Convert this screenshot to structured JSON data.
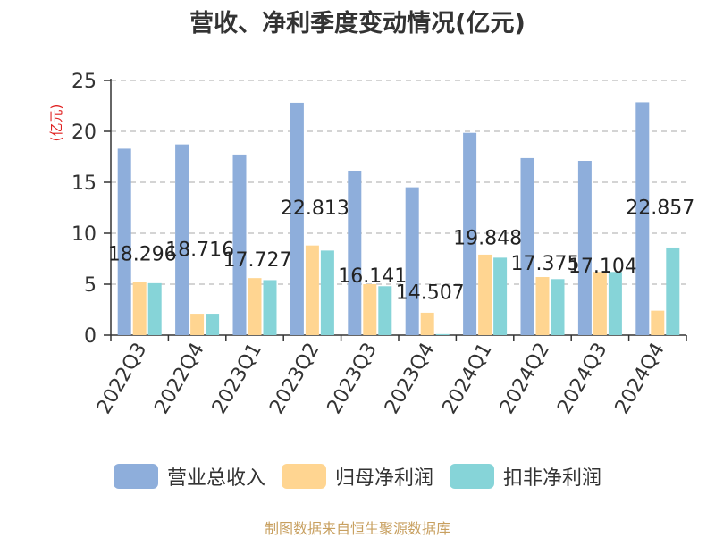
{
  "chart_data": {
    "type": "bar",
    "title": "营收、净利季度变动情况(亿元)",
    "ylabel": "(亿元)",
    "xlabel": "",
    "ylim": [
      0,
      25
    ],
    "yticks": [
      0,
      5,
      10,
      15,
      20,
      25
    ],
    "grid": true,
    "legend_position": "bottom",
    "categories": [
      "2022Q3",
      "2022Q4",
      "2023Q1",
      "2023Q2",
      "2023Q3",
      "2023Q4",
      "2024Q1",
      "2024Q2",
      "2024Q3",
      "2024Q4"
    ],
    "series": [
      {
        "name": "营业总收入",
        "color": "#8eaedb",
        "values": [
          18.296,
          18.716,
          17.727,
          22.813,
          16.141,
          14.507,
          19.848,
          17.375,
          17.104,
          22.857
        ]
      },
      {
        "name": "归母净利润",
        "color": "#ffd591",
        "values": [
          5.2,
          2.1,
          5.6,
          8.8,
          5.0,
          2.2,
          7.9,
          5.7,
          6.2,
          2.4
        ]
      },
      {
        "name": "扣非净利润",
        "color": "#86d4d8",
        "values": [
          5.1,
          2.1,
          5.4,
          8.3,
          4.8,
          0.1,
          7.6,
          5.5,
          6.2,
          8.6
        ]
      }
    ],
    "data_labels": [
      "18.296",
      "18.716",
      "17.727",
      "22.813",
      "16.141",
      "14.507",
      "19.848",
      "17.375",
      "17.104",
      "22.857"
    ]
  },
  "source_text": "制图数据来自恒生聚源数据库"
}
